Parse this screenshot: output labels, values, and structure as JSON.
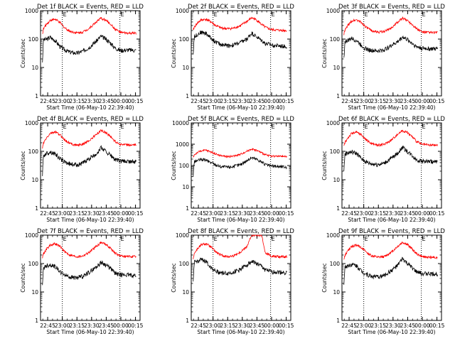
{
  "chart_data": [
    {
      "type": "line",
      "title": "Det 1f BLACK = Events, RED = LLD",
      "xlabel": "Start Time (06-May-10 22:39:40)",
      "ylabel": "Counts/sec",
      "yscale": "log",
      "ylim": [
        1,
        1000
      ],
      "x_ticks": [
        "22:45",
        "23:00",
        "23:15",
        "23:30",
        "23:45",
        "00:00",
        "00:15"
      ],
      "y_ticks": [
        "1",
        "10",
        "100",
        "1000"
      ],
      "event_lines_x": [
        "23:00",
        "23:59"
      ],
      "event_marker": "E",
      "series": [
        {
          "name": "BLACK",
          "color": "#000000",
          "x": [
            0,
            1,
            4,
            8,
            13,
            18,
            23,
            28,
            35,
            41,
            48,
            55,
            60,
            65,
            70,
            74,
            80,
            88,
            96
          ],
          "y": [
            16,
            95,
            98,
            115,
            90,
            55,
            42,
            35,
            32,
            37,
            52,
            85,
            125,
            100,
            72,
            50,
            40,
            42,
            40
          ]
        },
        {
          "name": "RED",
          "color": "#ff0000",
          "x": [
            0,
            1,
            4,
            8,
            13,
            18,
            23,
            28,
            35,
            41,
            48,
            55,
            60,
            65,
            70,
            74,
            80,
            88,
            96
          ],
          "y": [
            150,
            230,
            330,
            460,
            500,
            380,
            245,
            190,
            165,
            175,
            240,
            400,
            540,
            460,
            330,
            230,
            170,
            160,
            160
          ]
        }
      ]
    },
    {
      "type": "line",
      "title": "Det 2f BLACK = Events, RED = LLD",
      "xlabel": "Start Time (06-May-10 22:39:40)",
      "ylabel": "Counts/sec",
      "yscale": "log",
      "ylim": [
        1,
        1000
      ],
      "x_ticks": [
        "22:45",
        "23:00",
        "23:15",
        "23:30",
        "23:45",
        "00:00",
        "00:15"
      ],
      "y_ticks": [
        "1",
        "10",
        "100",
        "1000"
      ],
      "event_lines_x": [
        "23:00",
        "23:59"
      ],
      "event_marker": "E",
      "series": [
        {
          "name": "BLACK",
          "color": "#000000",
          "x": [
            0,
            1,
            4,
            8,
            13,
            18,
            23,
            28,
            35,
            41,
            48,
            55,
            60,
            65,
            70,
            74,
            80,
            88,
            96
          ],
          "y": [
            28,
            120,
            145,
            175,
            160,
            110,
            80,
            65,
            60,
            62,
            75,
            100,
            165,
            120,
            90,
            70,
            62,
            58,
            55
          ]
        },
        {
          "name": "RED",
          "color": "#ff0000",
          "x": [
            0,
            1,
            4,
            8,
            13,
            18,
            23,
            28,
            35,
            41,
            48,
            55,
            60,
            65,
            70,
            74,
            80,
            88,
            96
          ],
          "y": [
            200,
            260,
            360,
            470,
            500,
            410,
            300,
            250,
            230,
            240,
            290,
            420,
            560,
            470,
            330,
            260,
            215,
            205,
            200
          ]
        }
      ]
    },
    {
      "type": "line",
      "title": "Det 3f BLACK = Events, RED = LLD",
      "xlabel": "Start Time (06-May-10 22:39:40)",
      "ylabel": "Counts/sec",
      "yscale": "log",
      "ylim": [
        1,
        1000
      ],
      "x_ticks": [
        "22:45",
        "23:00",
        "23:15",
        "23:30",
        "23:45",
        "00:00",
        "00:15"
      ],
      "y_ticks": [
        "1",
        "10",
        "100",
        "1000"
      ],
      "event_lines_x": [
        "23:00",
        "23:59"
      ],
      "event_marker": "E",
      "series": [
        {
          "name": "BLACK",
          "color": "#000000",
          "x": [
            0,
            1,
            4,
            8,
            13,
            18,
            23,
            28,
            35,
            41,
            48,
            55,
            60,
            65,
            70,
            74,
            80,
            88,
            96
          ],
          "y": [
            20,
            80,
            90,
            105,
            90,
            60,
            45,
            40,
            38,
            42,
            58,
            80,
            120,
            95,
            72,
            55,
            48,
            46,
            45
          ]
        },
        {
          "name": "RED",
          "color": "#ff0000",
          "x": [
            0,
            1,
            4,
            8,
            13,
            18,
            23,
            28,
            35,
            41,
            48,
            55,
            60,
            65,
            70,
            74,
            80,
            88,
            96
          ],
          "y": [
            150,
            200,
            300,
            430,
            480,
            380,
            260,
            200,
            175,
            185,
            240,
            390,
            540,
            460,
            330,
            240,
            180,
            170,
            170
          ]
        }
      ]
    },
    {
      "type": "line",
      "title": "Det 4f BLACK = Events, RED = LLD",
      "xlabel": "Start Time (06-May-10 22:39:40)",
      "ylabel": "Counts/sec",
      "yscale": "log",
      "ylim": [
        1,
        1000
      ],
      "x_ticks": [
        "22:45",
        "23:00",
        "23:15",
        "23:30",
        "23:45",
        "00:00",
        "00:15"
      ],
      "y_ticks": [
        "1",
        "10",
        "100",
        "1000"
      ],
      "event_lines_x": [
        "23:00",
        "23:59"
      ],
      "event_marker": "E",
      "series": [
        {
          "name": "BLACK",
          "color": "#000000",
          "x": [
            0,
            1,
            4,
            8,
            13,
            18,
            23,
            28,
            35,
            41,
            48,
            55,
            60,
            65,
            70,
            74,
            80,
            88,
            96
          ],
          "y": [
            16,
            70,
            85,
            95,
            82,
            55,
            42,
            36,
            34,
            38,
            55,
            80,
            135,
            100,
            72,
            52,
            45,
            44,
            43
          ]
        },
        {
          "name": "RED",
          "color": "#ff0000",
          "x": [
            0,
            1,
            4,
            8,
            13,
            18,
            23,
            28,
            35,
            41,
            48,
            55,
            60,
            65,
            70,
            74,
            80,
            88,
            96
          ],
          "y": [
            130,
            190,
            290,
            430,
            480,
            380,
            250,
            190,
            165,
            175,
            240,
            390,
            540,
            460,
            330,
            230,
            175,
            165,
            165
          ]
        }
      ]
    },
    {
      "type": "line",
      "title": "Det 5f BLACK = Events, RED = LLD",
      "xlabel": "Start Time (06-May-10 22:39:40)",
      "ylabel": "Counts/sec",
      "yscale": "log",
      "ylim": [
        1,
        10000
      ],
      "x_ticks": [
        "22:45",
        "23:00",
        "23:15",
        "23:30",
        "23:45",
        "00:00",
        "00:15"
      ],
      "y_ticks": [
        "1",
        "10",
        "100",
        "1000",
        "10000"
      ],
      "event_lines_x": [
        "23:00",
        "23:59"
      ],
      "event_marker": "E",
      "series": [
        {
          "name": "BLACK",
          "color": "#000000",
          "x": [
            0,
            1,
            4,
            8,
            13,
            18,
            23,
            28,
            35,
            41,
            48,
            55,
            60,
            65,
            70,
            74,
            80,
            88,
            96
          ],
          "y": [
            32,
            150,
            170,
            190,
            180,
            140,
            110,
            90,
            85,
            90,
            110,
            170,
            240,
            200,
            150,
            110,
            95,
            90,
            85
          ]
        },
        {
          "name": "RED",
          "color": "#ff0000",
          "x": [
            0,
            1,
            4,
            8,
            13,
            18,
            23,
            28,
            35,
            41,
            48,
            55,
            60,
            65,
            70,
            74,
            80,
            88,
            96
          ],
          "y": [
            240,
            310,
            400,
            490,
            520,
            440,
            350,
            290,
            265,
            275,
            330,
            470,
            600,
            520,
            400,
            320,
            280,
            270,
            265
          ]
        }
      ]
    },
    {
      "type": "line",
      "title": "Det 6f BLACK = Events, RED = LLD",
      "xlabel": "Start Time (06-May-10 22:39:40)",
      "ylabel": "Counts/sec",
      "yscale": "log",
      "ylim": [
        1,
        1000
      ],
      "x_ticks": [
        "22:45",
        "23:00",
        "23:15",
        "23:30",
        "23:45",
        "00:00",
        "00:15"
      ],
      "y_ticks": [
        "1",
        "10",
        "100",
        "1000"
      ],
      "event_lines_x": [
        "23:00",
        "23:59"
      ],
      "event_marker": "E",
      "series": [
        {
          "name": "BLACK",
          "color": "#000000",
          "x": [
            0,
            1,
            4,
            8,
            13,
            18,
            23,
            28,
            35,
            41,
            48,
            55,
            60,
            65,
            70,
            74,
            80,
            88,
            96
          ],
          "y": [
            20,
            80,
            90,
            95,
            85,
            55,
            42,
            36,
            35,
            38,
            55,
            85,
            140,
            100,
            72,
            52,
            45,
            44,
            42
          ]
        },
        {
          "name": "RED",
          "color": "#ff0000",
          "x": [
            0,
            1,
            4,
            8,
            13,
            18,
            23,
            28,
            35,
            41,
            48,
            55,
            60,
            65,
            70,
            74,
            80,
            88,
            96
          ],
          "y": [
            150,
            200,
            300,
            430,
            470,
            380,
            250,
            190,
            165,
            175,
            240,
            400,
            540,
            460,
            330,
            230,
            175,
            165,
            165
          ]
        }
      ]
    },
    {
      "type": "line",
      "title": "Det 7f BLACK = Events, RED = LLD",
      "xlabel": "Start Time (06-May-10 22:39:40)",
      "ylabel": "Counts/sec",
      "yscale": "log",
      "ylim": [
        1,
        1000
      ],
      "x_ticks": [
        "22:45",
        "23:00",
        "23:15",
        "23:30",
        "23:45",
        "00:00",
        "00:15"
      ],
      "y_ticks": [
        "1",
        "10",
        "100",
        "1000"
      ],
      "event_lines_x": [
        "23:00",
        "23:59"
      ],
      "event_marker": "E",
      "series": [
        {
          "name": "BLACK",
          "color": "#000000",
          "x": [
            0,
            1,
            4,
            8,
            13,
            18,
            23,
            28,
            35,
            41,
            48,
            55,
            60,
            65,
            70,
            74,
            80,
            88,
            96
          ],
          "y": [
            16,
            70,
            85,
            90,
            80,
            52,
            40,
            34,
            32,
            36,
            50,
            75,
            110,
            90,
            65,
            48,
            40,
            40,
            38
          ]
        },
        {
          "name": "RED",
          "color": "#ff0000",
          "x": [
            0,
            1,
            4,
            8,
            13,
            18,
            23,
            28,
            35,
            41,
            48,
            55,
            60,
            65,
            70,
            74,
            80,
            88,
            96
          ],
          "y": [
            170,
            220,
            320,
            450,
            500,
            400,
            260,
            200,
            175,
            185,
            250,
            400,
            560,
            480,
            340,
            240,
            185,
            175,
            175
          ]
        }
      ]
    },
    {
      "type": "line",
      "title": "Det 8f BLACK = Events, RED = LLD",
      "xlabel": "Start Time (06-May-10 22:39:40)",
      "ylabel": "Counts/sec",
      "yscale": "log",
      "ylim": [
        1,
        1000
      ],
      "x_ticks": [
        "22:45",
        "23:00",
        "23:15",
        "23:30",
        "23:45",
        "00:00",
        "00:15"
      ],
      "y_ticks": [
        "1",
        "10",
        "100",
        "1000"
      ],
      "event_lines_x": [
        "23:00",
        "23:59"
      ],
      "event_marker": "E",
      "series": [
        {
          "name": "BLACK",
          "color": "#000000",
          "x": [
            0,
            1,
            4,
            8,
            13,
            18,
            23,
            28,
            35,
            41,
            48,
            55,
            60,
            65,
            70,
            74,
            80,
            88,
            96
          ],
          "y": [
            20,
            110,
            120,
            135,
            120,
            75,
            55,
            48,
            45,
            50,
            62,
            90,
            120,
            100,
            80,
            60,
            52,
            50,
            48
          ]
        },
        {
          "name": "RED",
          "color": "#ff0000",
          "x": [
            0,
            1,
            4,
            8,
            13,
            18,
            23,
            28,
            35,
            41,
            48,
            55,
            60,
            65,
            70,
            74,
            80,
            88,
            96
          ],
          "y": [
            150,
            220,
            320,
            450,
            500,
            390,
            260,
            200,
            175,
            185,
            250,
            400,
            1000,
            1000,
            1000,
            240,
            185,
            175,
            175
          ]
        }
      ]
    },
    {
      "type": "line",
      "title": "Det 9f BLACK = Events, RED = LLD",
      "xlabel": "Start Time (06-May-10 22:39:40)",
      "ylabel": "Counts/sec",
      "yscale": "log",
      "ylim": [
        1,
        1000
      ],
      "x_ticks": [
        "22:45",
        "23:00",
        "23:15",
        "23:30",
        "23:45",
        "00:00",
        "00:15"
      ],
      "y_ticks": [
        "1",
        "10",
        "100",
        "1000"
      ],
      "event_lines_x": [
        "23:00",
        "23:59"
      ],
      "event_marker": "E",
      "series": [
        {
          "name": "BLACK",
          "color": "#000000",
          "x": [
            0,
            1,
            4,
            8,
            13,
            18,
            23,
            28,
            35,
            41,
            48,
            55,
            60,
            65,
            70,
            74,
            80,
            88,
            96
          ],
          "y": [
            20,
            75,
            85,
            95,
            85,
            55,
            42,
            36,
            34,
            38,
            55,
            85,
            150,
            100,
            72,
            52,
            45,
            44,
            42
          ]
        },
        {
          "name": "RED",
          "color": "#ff0000",
          "x": [
            0,
            1,
            4,
            8,
            13,
            18,
            23,
            28,
            35,
            41,
            48,
            55,
            60,
            65,
            70,
            74,
            80,
            88,
            96
          ],
          "y": [
            140,
            190,
            280,
            400,
            450,
            370,
            250,
            190,
            165,
            175,
            240,
            400,
            560,
            470,
            330,
            230,
            175,
            165,
            165
          ]
        }
      ]
    }
  ]
}
